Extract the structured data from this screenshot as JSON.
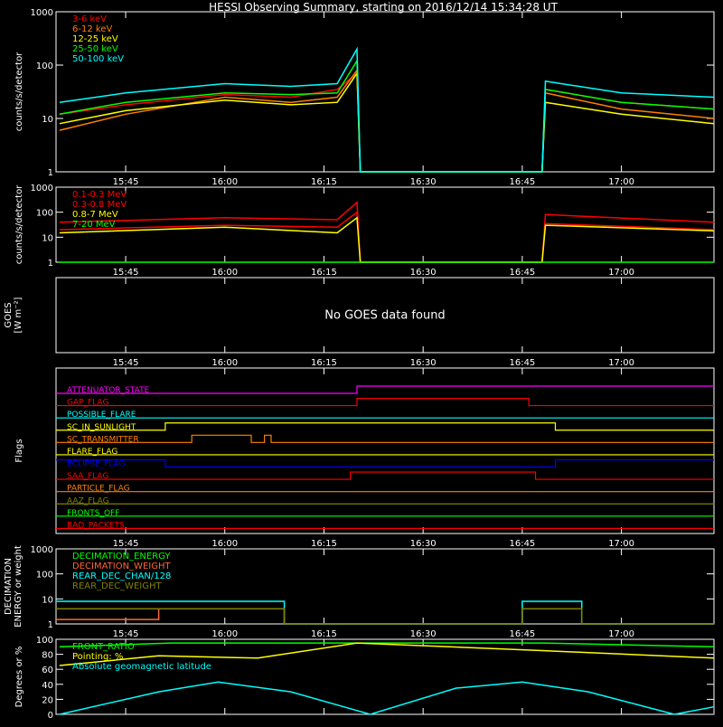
{
  "title": "HESSI Observing Summary, starting on 2016/12/14 15:34:28 UT",
  "time_ticks": [
    "15:45",
    "16:00",
    "16:15",
    "16:30",
    "16:45",
    "17:00"
  ],
  "colors": {
    "axis": "#ffffff",
    "red": "#ff0000",
    "orange": "#ff7f00",
    "yellow": "#ffff00",
    "green": "#00ff00",
    "cyan": "#00ffff",
    "magenta": "#ff00ff",
    "blue": "#0000ff",
    "olive": "#808000",
    "salmon": "#ff6633"
  },
  "chart_data": [
    {
      "type": "line",
      "ylabel": "counts/s/detector",
      "ylog": true,
      "ylim": [
        1,
        1000
      ],
      "yticks": [
        "1",
        "10",
        "100",
        "1000"
      ],
      "x_range": [
        "15:34:28",
        "17:14:00"
      ],
      "series": [
        {
          "name": "3-6 keV",
          "color": "#ff0000",
          "points": [
            [
              "15:35",
              12
            ],
            [
              "15:45",
              18
            ],
            [
              "16:00",
              28
            ],
            [
              "16:10",
              25
            ],
            [
              "16:17",
              35
            ],
            [
              "16:20",
              70
            ],
            [
              "16:20:30",
              1
            ],
            [
              "16:48",
              1
            ],
            [
              "16:48:30",
              35
            ],
            [
              "17:00",
              20
            ],
            [
              "17:14",
              15
            ]
          ]
        },
        {
          "name": "6-12 keV",
          "color": "#ff7f00",
          "points": [
            [
              "15:35",
              6
            ],
            [
              "15:45",
              12
            ],
            [
              "16:00",
              25
            ],
            [
              "16:10",
              20
            ],
            [
              "16:17",
              25
            ],
            [
              "16:20",
              80
            ],
            [
              "16:20:30",
              1
            ],
            [
              "16:48",
              1
            ],
            [
              "16:48:30",
              30
            ],
            [
              "17:00",
              15
            ],
            [
              "17:14",
              10
            ]
          ]
        },
        {
          "name": "12-25 keV",
          "color": "#ffff00",
          "points": [
            [
              "15:35",
              8
            ],
            [
              "15:45",
              14
            ],
            [
              "16:00",
              22
            ],
            [
              "16:10",
              18
            ],
            [
              "16:17",
              20
            ],
            [
              "16:20",
              70
            ],
            [
              "16:20:30",
              1
            ],
            [
              "16:48",
              1
            ],
            [
              "16:48:30",
              20
            ],
            [
              "17:00",
              12
            ],
            [
              "17:14",
              8
            ]
          ]
        },
        {
          "name": "25-50 keV",
          "color": "#00ff00",
          "points": [
            [
              "15:35",
              12
            ],
            [
              "15:45",
              20
            ],
            [
              "16:00",
              30
            ],
            [
              "16:10",
              28
            ],
            [
              "16:17",
              30
            ],
            [
              "16:20",
              120
            ],
            [
              "16:20:30",
              1
            ],
            [
              "16:48",
              1
            ],
            [
              "16:48:30",
              35
            ],
            [
              "17:00",
              20
            ],
            [
              "17:14",
              15
            ]
          ]
        },
        {
          "name": "50-100 keV",
          "color": "#00ffff",
          "points": [
            [
              "15:35",
              20
            ],
            [
              "15:45",
              30
            ],
            [
              "16:00",
              45
            ],
            [
              "16:10",
              40
            ],
            [
              "16:17",
              45
            ],
            [
              "16:20",
              200
            ],
            [
              "16:20:30",
              1
            ],
            [
              "16:48",
              1
            ],
            [
              "16:48:30",
              50
            ],
            [
              "17:00",
              30
            ],
            [
              "17:14",
              25
            ]
          ]
        }
      ]
    },
    {
      "type": "line",
      "ylabel": "counts/s/detector",
      "ylog": true,
      "ylim": [
        1,
        1000
      ],
      "yticks": [
        "1",
        "10",
        "100",
        "1000"
      ],
      "series": [
        {
          "name": "0.1-0.3 MeV",
          "color": "#ff0000",
          "points": [
            [
              "15:35",
              40
            ],
            [
              "16:00",
              60
            ],
            [
              "16:17",
              50
            ],
            [
              "16:20",
              250
            ],
            [
              "16:20:30",
              1
            ],
            [
              "16:48",
              1
            ],
            [
              "16:48:30",
              80
            ],
            [
              "17:14",
              40
            ]
          ]
        },
        {
          "name": "0.3-0.8 MeV",
          "color": "#ff0000",
          "points": [
            [
              "15:35",
              20
            ],
            [
              "16:00",
              30
            ],
            [
              "16:17",
              25
            ],
            [
              "16:20",
              100
            ],
            [
              "16:20:30",
              1
            ],
            [
              "16:48",
              1
            ],
            [
              "16:48:30",
              35
            ],
            [
              "17:14",
              20
            ]
          ]
        },
        {
          "name": "0.8-7 MeV",
          "color": "#ffff00",
          "points": [
            [
              "15:35",
              15
            ],
            [
              "16:00",
              25
            ],
            [
              "16:17",
              15
            ],
            [
              "16:20",
              60
            ],
            [
              "16:20:30",
              1
            ],
            [
              "16:48",
              1
            ],
            [
              "16:48:30",
              30
            ],
            [
              "17:14",
              18
            ]
          ]
        },
        {
          "name": "7-20 MeV",
          "color": "#00ff00",
          "points": [
            [
              "15:35",
              1
            ],
            [
              "16:20",
              1
            ],
            [
              "16:48",
              1
            ],
            [
              "17:14",
              1
            ]
          ]
        }
      ]
    },
    {
      "type": "line",
      "ylabel_lines": [
        "GOES",
        "[W m⁻²]"
      ],
      "message": "No GOES data found",
      "series": []
    },
    {
      "type": "table",
      "ylabel": "Flags",
      "flags": [
        {
          "name": "ATTENUATOR_STATE",
          "color": "#ff00ff",
          "segments": [
            [
              "15:34:28",
              "16:20",
              0
            ],
            [
              "16:20",
              "17:14",
              1
            ]
          ]
        },
        {
          "name": "GAP_FLAG",
          "color": "#ff0000",
          "segments": [
            [
              "15:34:28",
              "16:20",
              0
            ],
            [
              "16:20",
              "16:46",
              1
            ],
            [
              "16:46",
              "17:14",
              0
            ]
          ]
        },
        {
          "name": "POSSIBLE_FLARE",
          "color": "#00ffff",
          "segments": [
            [
              "15:34:28",
              "17:14",
              0
            ]
          ]
        },
        {
          "name": "SC_IN_SUNLIGHT",
          "color": "#ffff00",
          "segments": [
            [
              "15:34:28",
              "15:51",
              0
            ],
            [
              "15:51",
              "16:50",
              1
            ],
            [
              "16:50",
              "17:14",
              0
            ]
          ]
        },
        {
          "name": "SC_TRANSMITTER",
          "color": "#ff7f00",
          "segments": [
            [
              "15:34:28",
              "15:55",
              0
            ],
            [
              "15:55",
              "16:04",
              1
            ],
            [
              "16:04",
              "16:06",
              0
            ],
            [
              "16:06",
              "16:07",
              1
            ],
            [
              "16:07",
              "17:14",
              0
            ]
          ]
        },
        {
          "name": "FLARE_FLAG",
          "color": "#ffff00",
          "segments": [
            [
              "15:34:28",
              "17:14",
              0
            ]
          ]
        },
        {
          "name": "ECLIPSE_FLAG",
          "color": "#0000ff",
          "segments": [
            [
              "15:34:28",
              "15:51",
              1
            ],
            [
              "15:51",
              "16:50",
              0
            ],
            [
              "16:50",
              "17:14",
              1
            ]
          ]
        },
        {
          "name": "SAA_FLAG",
          "color": "#ff0000",
          "segments": [
            [
              "15:34:28",
              "16:19",
              0
            ],
            [
              "16:19",
              "16:47",
              1
            ],
            [
              "16:47",
              "17:14",
              0
            ]
          ]
        },
        {
          "name": "PARTICLE_FLAG",
          "color": "#ff7f00",
          "segments": [
            [
              "15:34:28",
              "17:14",
              0
            ]
          ]
        },
        {
          "name": "AAZ_FLAG",
          "color": "#808000",
          "segments": [
            [
              "15:34:28",
              "17:14",
              0
            ]
          ]
        },
        {
          "name": "FRONTS_OFF",
          "color": "#00ff00",
          "segments": [
            [
              "15:34:28",
              "17:14",
              0
            ]
          ]
        },
        {
          "name": "BAD_PACKETS",
          "color": "#ff0000",
          "segments": [
            [
              "15:34:28",
              "17:14",
              0
            ]
          ]
        }
      ]
    },
    {
      "type": "line",
      "ylabel_lines": [
        "DECIMATION",
        "ENERGY or weight"
      ],
      "ylog": true,
      "ylim": [
        1,
        1000
      ],
      "yticks": [
        "1",
        "10",
        "100",
        "1000"
      ],
      "series": [
        {
          "name": "DECIMATION_ENERGY",
          "color": "#00ff00",
          "points": []
        },
        {
          "name": "DECIMATION_WEIGHT",
          "color": "#ff6633",
          "points": [
            [
              "15:34:28",
              1.5
            ],
            [
              "15:50",
              1.5
            ],
            [
              "15:50",
              4
            ],
            [
              "16:09",
              4
            ],
            [
              "16:09",
              1
            ],
            [
              "16:45",
              1
            ],
            [
              "16:45",
              4
            ],
            [
              "16:54",
              4
            ],
            [
              "16:54",
              1
            ],
            [
              "17:14",
              1
            ]
          ]
        },
        {
          "name": "REAR_DEC_CHAN/128",
          "color": "#00ffff",
          "points": [
            [
              "15:34:28",
              8
            ],
            [
              "16:09",
              8
            ],
            [
              "16:09",
              1
            ],
            [
              "16:45",
              1
            ],
            [
              "16:45",
              8
            ],
            [
              "16:54",
              8
            ],
            [
              "16:54",
              1
            ],
            [
              "17:14",
              1
            ]
          ]
        },
        {
          "name": "REAR_DEC_WEIGHT",
          "color": "#808000",
          "points": [
            [
              "15:34:28",
              4
            ],
            [
              "16:09",
              4
            ],
            [
              "16:09",
              1
            ],
            [
              "16:45",
              1
            ],
            [
              "16:45",
              4
            ],
            [
              "16:54",
              4
            ],
            [
              "16:54",
              1
            ],
            [
              "17:14",
              1
            ]
          ]
        }
      ]
    },
    {
      "type": "line",
      "ylabel": "Degrees or %",
      "ylim": [
        0,
        100
      ],
      "yticks": [
        "0",
        "20",
        "40",
        "60",
        "80",
        "100"
      ],
      "series": [
        {
          "name": "FRONT_RATIO",
          "color": "#00ff00",
          "points": [
            [
              "15:35",
              90
            ],
            [
              "15:52",
              95
            ],
            [
              "16:20",
              95
            ],
            [
              "16:48",
              95
            ],
            [
              "17:14",
              90
            ]
          ]
        },
        {
          "name": "Pointing: %",
          "color": "#ffff00",
          "points": [
            [
              "15:35",
              65
            ],
            [
              "15:50",
              78
            ],
            [
              "16:05",
              75
            ],
            [
              "16:20",
              95
            ],
            [
              "16:48",
              85
            ],
            [
              "17:14",
              75
            ]
          ]
        },
        {
          "name": "Absolute geomagnetic latitude",
          "color": "#00ffff",
          "points": [
            [
              "15:35",
              0
            ],
            [
              "15:50",
              30
            ],
            [
              "15:59",
              43
            ],
            [
              "16:10",
              30
            ],
            [
              "16:22",
              0
            ],
            [
              "16:35",
              35
            ],
            [
              "16:45",
              43
            ],
            [
              "16:55",
              30
            ],
            [
              "17:08",
              0
            ],
            [
              "17:14",
              10
            ]
          ]
        }
      ]
    }
  ]
}
